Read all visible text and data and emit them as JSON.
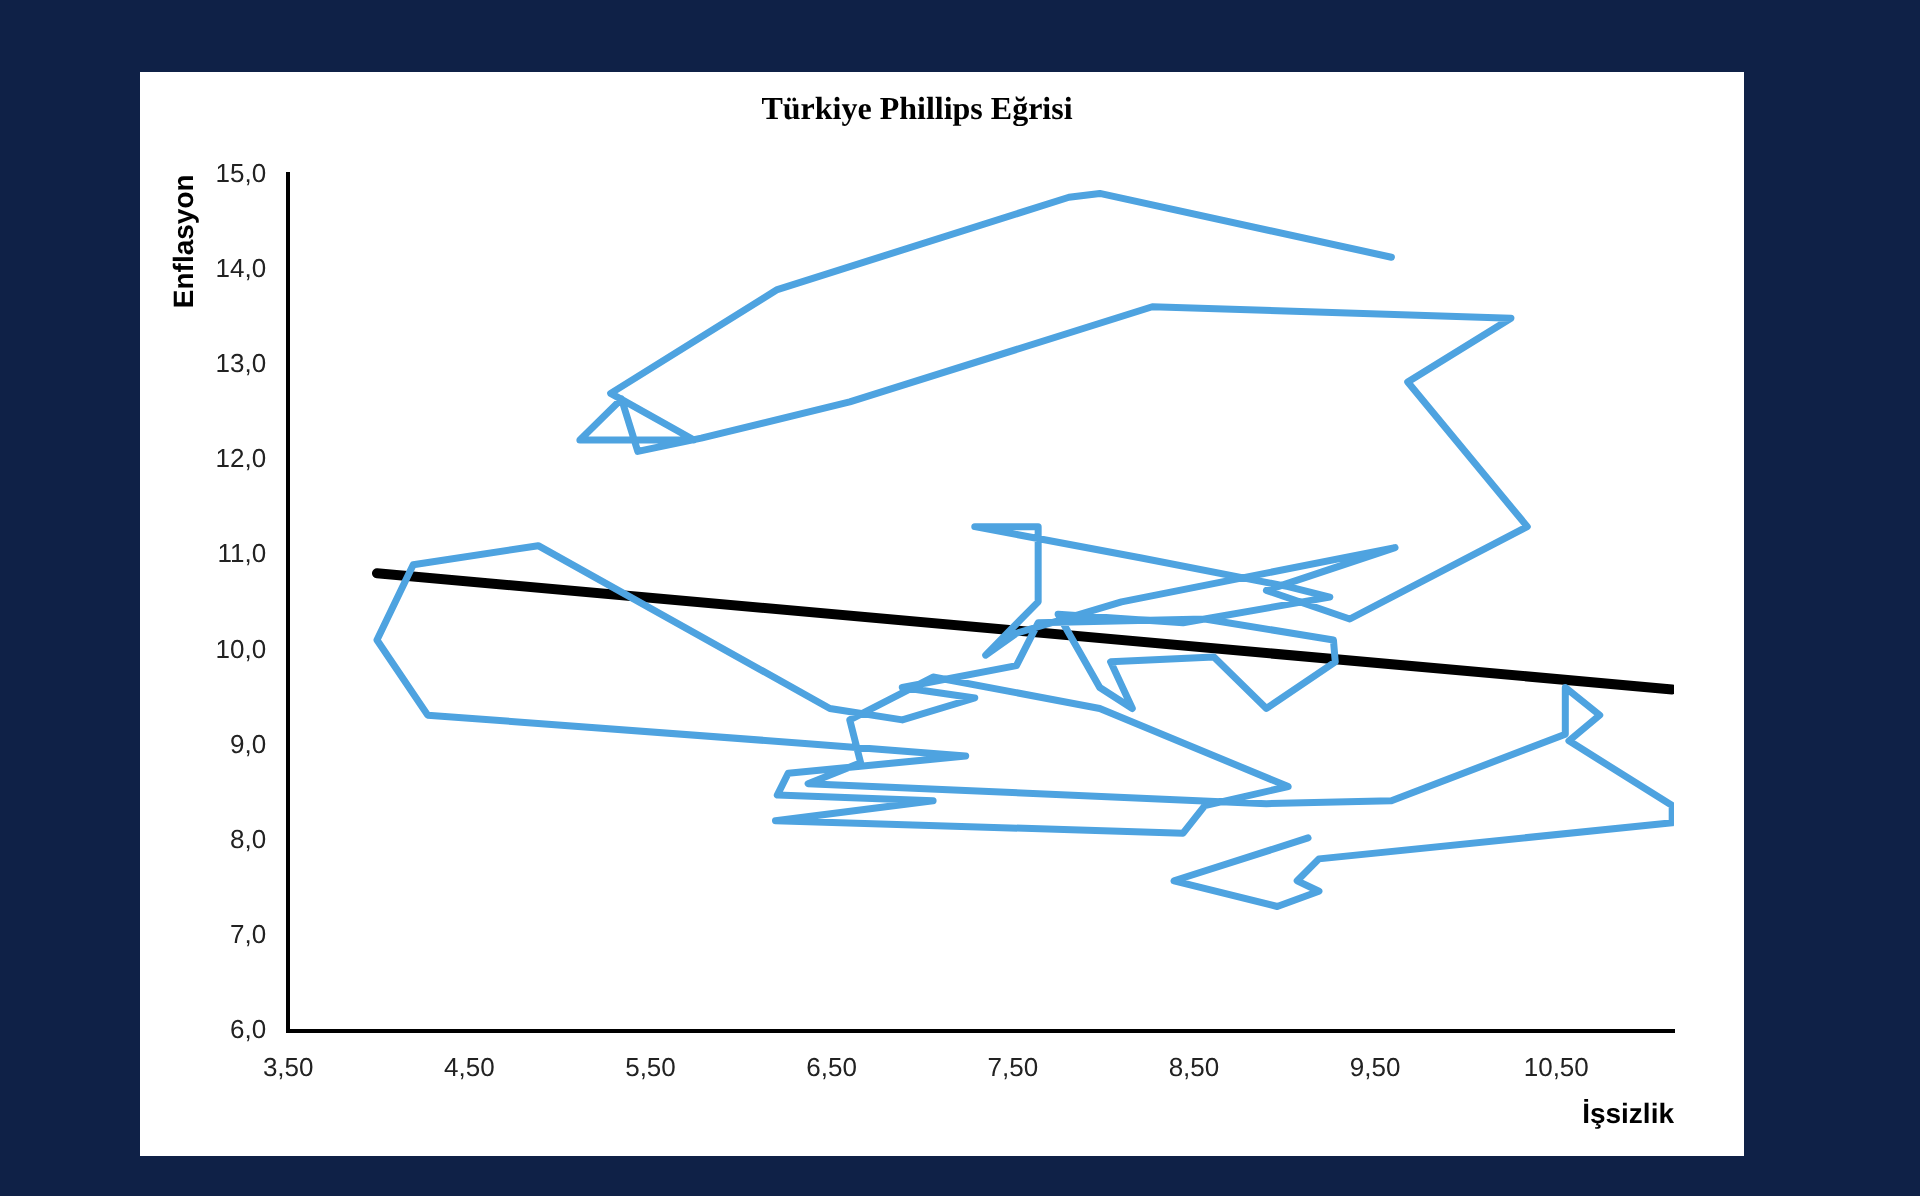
{
  "chart_data": {
    "type": "line",
    "title": "Türkiye Phillips Eğrisi",
    "xlabel": "İşsizlik",
    "ylabel": "Enflasyon",
    "xlim": [
      3.5,
      11.15
    ],
    "ylim": [
      6,
      15
    ],
    "xticks": [
      {
        "value": 3.5,
        "label": "3,50"
      },
      {
        "value": 4.5,
        "label": "4,50"
      },
      {
        "value": 5.5,
        "label": "5,50"
      },
      {
        "value": 6.5,
        "label": "6,50"
      },
      {
        "value": 7.5,
        "label": "7,50"
      },
      {
        "value": 8.5,
        "label": "8,50"
      },
      {
        "value": 9.5,
        "label": "9,50"
      },
      {
        "value": 10.5,
        "label": "10,50"
      }
    ],
    "yticks": [
      {
        "value": 6,
        "label": "6,0"
      },
      {
        "value": 7,
        "label": "7,0"
      },
      {
        "value": 8,
        "label": "8,0"
      },
      {
        "value": 9,
        "label": "9,0"
      },
      {
        "value": 10,
        "label": "10,0"
      },
      {
        "value": 11,
        "label": "11,0"
      },
      {
        "value": 12,
        "label": "12,0"
      },
      {
        "value": 13,
        "label": "13,0"
      },
      {
        "value": 14,
        "label": "14,0"
      },
      {
        "value": 15,
        "label": "15,0"
      }
    ],
    "grid": false,
    "marker": "none",
    "line_style": "solid",
    "series": [
      {
        "color": "#4ea3e0",
        "x": [
          9.59,
          7.98,
          7.81,
          6.2,
          5.28,
          5.74,
          5.11,
          5.34,
          5.43,
          5.78,
          6.6,
          8.27,
          10.25,
          9.68,
          10.34,
          9.36,
          8.9,
          9.61,
          8.1,
          7.52,
          7.35,
          7.64,
          7.64,
          7.29,
          8.21,
          9.02,
          9.25,
          8.44,
          7.75,
          7.98,
          8.16,
          8.04,
          8.61,
          8.9,
          9.28,
          9.27,
          8.56,
          7.64,
          7.52,
          6.89,
          7.29,
          6.89,
          6.49,
          4.88,
          4.19,
          3.99,
          4.27,
          6.37,
          7.24,
          6.26,
          6.2,
          7.06,
          6.19,
          8.44,
          8.56,
          9.02,
          7.98,
          7.06,
          6.6,
          6.66,
          6.37,
          8.9,
          9.59,
          10.55,
          10.55,
          10.74,
          10.57,
          11.14,
          11.14,
          9.19,
          9.07,
          9.19,
          8.96,
          8.39,
          9.13
        ],
        "values": [
          14.13,
          14.8,
          14.76,
          13.79,
          12.7,
          12.21,
          12.21,
          12.64,
          12.09,
          12.23,
          12.61,
          13.61,
          13.49,
          12.82,
          11.3,
          10.33,
          10.63,
          11.08,
          10.51,
          10.18,
          9.95,
          10.51,
          11.3,
          11.3,
          10.97,
          10.67,
          10.56,
          10.29,
          10.38,
          9.61,
          9.39,
          9.88,
          9.93,
          9.39,
          9.88,
          10.11,
          10.33,
          10.29,
          9.84,
          9.61,
          9.5,
          9.27,
          9.39,
          11.1,
          10.9,
          10.11,
          9.32,
          9.02,
          8.89,
          8.71,
          8.48,
          8.42,
          8.21,
          8.08,
          8.37,
          8.57,
          9.39,
          9.72,
          9.27,
          8.82,
          8.6,
          8.39,
          8.42,
          9.12,
          9.61,
          9.32,
          9.05,
          8.37,
          8.19,
          7.81,
          7.58,
          7.47,
          7.31,
          7.58,
          8.03
        ]
      },
      {
        "color": "#000000",
        "x": [
          3.99,
          11.14
        ],
        "values": [
          10.81,
          9.59
        ]
      }
    ]
  }
}
